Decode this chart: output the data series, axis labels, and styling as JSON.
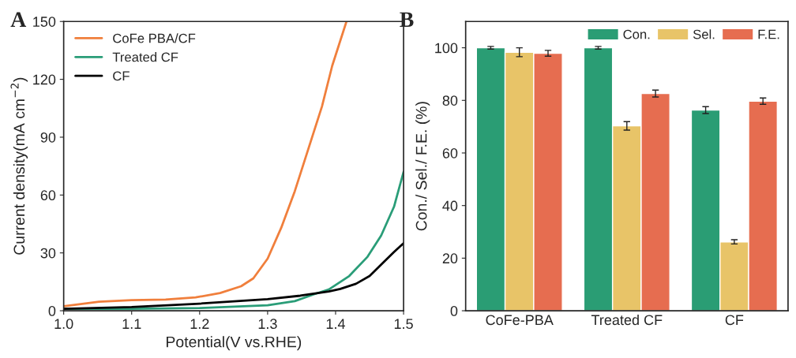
{
  "chart_data": [
    {
      "type": "line",
      "xlabel": "Potential(V vs.RHE)",
      "ylabel": "Current density(mA cm$^{−2}$)",
      "annotations": [
        "A"
      ],
      "xlim": [
        1.0,
        1.5
      ],
      "xticks": [
        {
          "value": 1.0,
          "label": "1.0"
        },
        1.1,
        1.2,
        1.3,
        1.4,
        {
          "value": 1.5,
          "label": "1.5"
        }
      ],
      "ylim": [
        0,
        150
      ],
      "yticks": [
        0,
        30,
        60,
        90,
        120,
        150
      ],
      "grid": false,
      "legend": "top left",
      "line_style": "solid",
      "marker": "none",
      "series": [
        {
          "name": "CoFe PBA/CF",
          "color": "#f07f3c",
          "x": [
            1.0,
            1.052,
            1.1,
            1.15,
            1.194,
            1.23,
            1.261,
            1.279,
            1.3,
            1.32,
            1.34,
            1.36,
            1.38,
            1.395,
            1.416
          ],
          "values": [
            2.3,
            4.7,
            5.5,
            5.8,
            6.9,
            9.2,
            12.7,
            16.8,
            27,
            43,
            62,
            84,
            106,
            127,
            150
          ]
        },
        {
          "name": "Treated CF",
          "color": "#2a9d78",
          "x": [
            1.0,
            1.1,
            1.2,
            1.3,
            1.34,
            1.368,
            1.39,
            1.42,
            1.447,
            1.467,
            1.486,
            1.5
          ],
          "values": [
            1,
            1,
            1.4,
            2.8,
            5,
            8.5,
            11,
            18,
            28,
            39,
            54,
            72
          ]
        },
        {
          "name": "CF",
          "color": "#000000",
          "x": [
            1.0,
            1.1,
            1.2,
            1.3,
            1.348,
            1.39,
            1.407,
            1.43,
            1.45,
            1.47,
            1.486,
            1.5
          ],
          "values": [
            1,
            1.9,
            3.7,
            6,
            7.8,
            10,
            11.3,
            14,
            18,
            25,
            30.5,
            35
          ]
        }
      ]
    },
    {
      "type": "bar",
      "ylabel": "Con./ Sel./ F.E. (%)",
      "annotations": [
        "B"
      ],
      "categories": [
        "CoFe-PBA",
        "Treated CF",
        "CF"
      ],
      "ylim": [
        0,
        110
      ],
      "yticks": [
        0,
        20,
        40,
        60,
        80,
        100
      ],
      "grid": false,
      "legend": "top right",
      "series": [
        {
          "name": "Con.",
          "color": "#2a9d74",
          "values": [
            100,
            100,
            76.3
          ],
          "errors": [
            0.5,
            0.5,
            1.3
          ]
        },
        {
          "name": "Sel.",
          "color": "#e8c468",
          "values": [
            98.3,
            70.3,
            26.2
          ],
          "errors": [
            1.7,
            1.6,
            0.8
          ]
        },
        {
          "name": "F.E.",
          "color": "#e66d50",
          "values": [
            97.9,
            82.6,
            79.7
          ],
          "errors": [
            1.1,
            1.3,
            1.2
          ]
        }
      ]
    }
  ]
}
